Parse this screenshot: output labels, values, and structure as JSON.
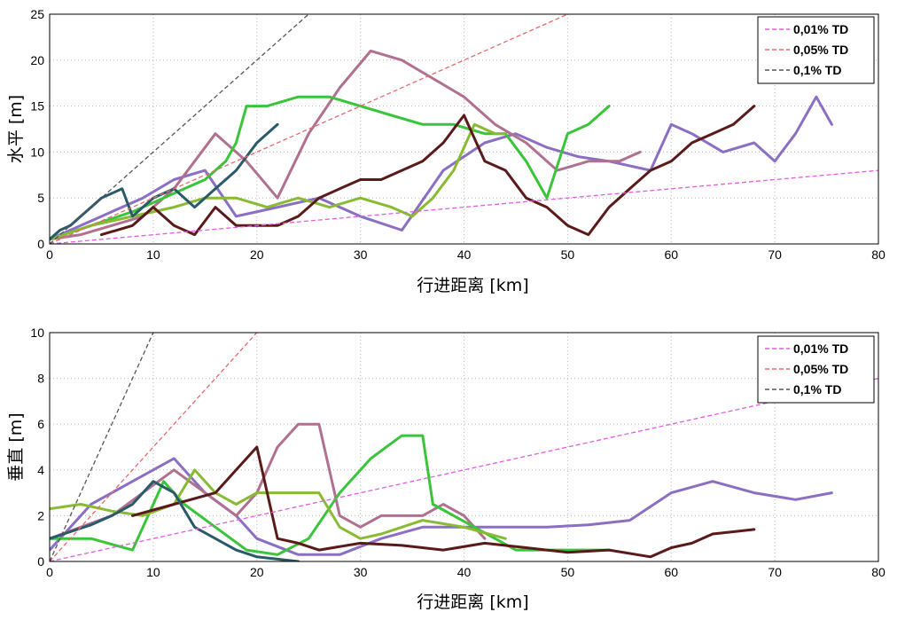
{
  "chart_data": [
    {
      "type": "line",
      "xlabel": "行进距离 [km]",
      "ylabel": "水平 [m]",
      "xlim": [
        0,
        80
      ],
      "ylim": [
        0,
        25
      ],
      "x_ticks": [
        "0",
        "10",
        "20",
        "30",
        "40",
        "50",
        "60",
        "70",
        "80"
      ],
      "y_ticks": [
        "0",
        "5",
        "10",
        "15",
        "20",
        "25"
      ],
      "grid": true,
      "legend_position": "top-right",
      "reference_lines": [
        {
          "name": "0,01% TD",
          "color": "#e35ce3",
          "slope": 0.1
        },
        {
          "name": "0,05% TD",
          "color": "#e86a6a",
          "slope": 0.5
        },
        {
          "name": "0,1% TD",
          "color": "#555555",
          "slope": 1.0
        }
      ],
      "series": [
        {
          "color": "#8a6fc3",
          "x": [
            0,
            3,
            6,
            9,
            12,
            15,
            18,
            22,
            26,
            30,
            34,
            38,
            42,
            45,
            48,
            51,
            54,
            58,
            60,
            62,
            65,
            68,
            70,
            72,
            74,
            75.5
          ],
          "y": [
            0.5,
            2,
            3.5,
            5,
            7,
            8,
            3,
            4,
            5,
            3,
            1.5,
            8,
            11,
            12,
            10.5,
            9.5,
            9,
            8,
            13,
            12,
            10,
            11,
            9,
            12,
            16,
            13
          ]
        },
        {
          "color": "#b07090",
          "x": [
            0,
            3,
            6,
            9,
            12,
            14,
            16,
            19,
            22,
            25,
            28,
            31,
            34,
            37,
            40,
            43,
            46,
            49,
            52,
            55,
            57
          ],
          "y": [
            0.5,
            1,
            2,
            3,
            6,
            9,
            12,
            9,
            5,
            12,
            17,
            21,
            20,
            18,
            16,
            13,
            11,
            8,
            9,
            9,
            10
          ]
        },
        {
          "color": "#3ac43a",
          "x": [
            0,
            4,
            8,
            11,
            13,
            15,
            17,
            18,
            19,
            21,
            24,
            27,
            30,
            33,
            36,
            39,
            42,
            44,
            46,
            48,
            50,
            52,
            54
          ],
          "y": [
            0.5,
            2,
            3.5,
            5,
            6,
            7,
            9,
            11,
            15,
            15,
            16,
            16,
            15,
            14,
            13,
            13,
            12,
            12,
            9,
            5,
            12,
            13,
            15
          ]
        },
        {
          "color": "#88bb33",
          "x": [
            0,
            4,
            8,
            12,
            15,
            18,
            21,
            24,
            27,
            30,
            33,
            35,
            37,
            39,
            41,
            43,
            44
          ],
          "y": [
            0.5,
            2,
            3,
            4,
            5,
            5,
            4,
            5,
            4,
            5,
            4,
            3,
            5,
            8,
            13,
            12,
            12
          ]
        },
        {
          "color": "#5a1a1a",
          "x": [
            5,
            8,
            10,
            12,
            14,
            16,
            18,
            20,
            22,
            24,
            26,
            28,
            30,
            32,
            34,
            36,
            38,
            40,
            42,
            44,
            46,
            48,
            50,
            52,
            54,
            56,
            58,
            60,
            62,
            64,
            66,
            68
          ],
          "y": [
            1,
            2,
            4,
            2,
            1,
            4,
            2,
            2,
            2,
            3,
            5,
            6,
            7,
            7,
            8,
            9,
            11,
            14,
            9,
            8,
            5,
            4,
            2,
            1,
            4,
            6,
            8,
            9,
            11,
            12,
            13,
            15
          ]
        },
        {
          "color": "#2a5a6a",
          "x": [
            0,
            1,
            2,
            3,
            4,
            5,
            6,
            7,
            8,
            10,
            12,
            14,
            16,
            18,
            20,
            22
          ],
          "y": [
            0.5,
            1.5,
            2,
            3,
            4,
            5,
            5.5,
            6,
            3,
            5,
            6,
            4,
            6,
            8,
            11,
            13
          ]
        }
      ]
    },
    {
      "type": "line",
      "xlabel": "行进距离 [km]",
      "ylabel": "垂直 [m]",
      "xlim": [
        0,
        80
      ],
      "ylim": [
        0,
        10
      ],
      "x_ticks": [
        "0",
        "10",
        "20",
        "30",
        "40",
        "50",
        "60",
        "70",
        "80"
      ],
      "y_ticks": [
        "0",
        "2",
        "4",
        "6",
        "8",
        "10"
      ],
      "grid": true,
      "legend_position": "top-right",
      "reference_lines": [
        {
          "name": "0,01% TD",
          "color": "#e35ce3",
          "slope": 0.1
        },
        {
          "name": "0,05% TD",
          "color": "#e86a6a",
          "slope": 0.5
        },
        {
          "name": "0,1% TD",
          "color": "#555555",
          "slope": 1.0
        }
      ],
      "series": [
        {
          "color": "#8a6fc3",
          "x": [
            0,
            4,
            8,
            12,
            15,
            18,
            20,
            24,
            28,
            32,
            36,
            40,
            44,
            48,
            52,
            56,
            60,
            64,
            68,
            72,
            75.5
          ],
          "y": [
            0.5,
            2.5,
            3.5,
            4.5,
            3,
            2,
            1,
            0.3,
            0.3,
            1,
            1.5,
            1.5,
            1.5,
            1.5,
            1.6,
            1.8,
            3,
            3.5,
            3,
            2.7,
            3
          ]
        },
        {
          "color": "#b07090",
          "x": [
            0,
            3,
            6,
            9,
            12,
            15,
            18,
            20,
            22,
            24,
            26,
            28,
            30,
            32,
            34,
            36,
            38,
            40,
            42
          ],
          "y": [
            1,
            1.5,
            2,
            3,
            4,
            3,
            2,
            3,
            5,
            6,
            6,
            2,
            1.5,
            2,
            2,
            2,
            2.5,
            2,
            1
          ]
        },
        {
          "color": "#3ac43a",
          "x": [
            0,
            4,
            8,
            11,
            13,
            16,
            19,
            22,
            25,
            28,
            31,
            34,
            36,
            37,
            39,
            41,
            45,
            50,
            54
          ],
          "y": [
            1,
            1,
            0.5,
            3.5,
            2.5,
            1.5,
            0.5,
            0.3,
            1,
            3,
            4.5,
            5.5,
            5.5,
            2.5,
            2,
            1.5,
            0.5,
            0.5,
            0.5
          ]
        },
        {
          "color": "#88bb33",
          "x": [
            0,
            3,
            6,
            9,
            12,
            14,
            16,
            18,
            20,
            22,
            24,
            26,
            28,
            30,
            32,
            34,
            36,
            40,
            44
          ],
          "y": [
            2.3,
            2.5,
            2.2,
            2,
            2.5,
            4,
            3,
            2.5,
            3,
            3,
            3,
            3,
            1.5,
            1,
            1.2,
            1.5,
            1.8,
            1.5,
            1
          ]
        },
        {
          "color": "#5a1a1a",
          "x": [
            8,
            12,
            16,
            18,
            20,
            22,
            24,
            26,
            30,
            34,
            38,
            42,
            46,
            50,
            54,
            58,
            60,
            62,
            64,
            66,
            68
          ],
          "y": [
            2,
            2.5,
            3,
            4,
            5,
            1,
            0.8,
            0.5,
            0.8,
            0.7,
            0.5,
            0.8,
            0.6,
            0.4,
            0.5,
            0.2,
            0.6,
            0.8,
            1.2,
            1.3,
            1.4
          ]
        },
        {
          "color": "#2a5a6a",
          "x": [
            0,
            2,
            4,
            6,
            8,
            10,
            12,
            14,
            16,
            18,
            20,
            22,
            24
          ],
          "y": [
            1,
            1.3,
            1.6,
            2,
            2.5,
            3.5,
            3,
            1.5,
            1,
            0.5,
            0.2,
            0.1,
            0
          ]
        }
      ]
    }
  ]
}
